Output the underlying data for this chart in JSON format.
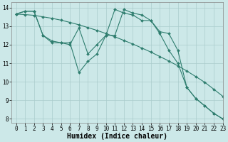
{
  "bg_color": "#cce8e8",
  "grid_color": "#aacccc",
  "line_color": "#2e7d6e",
  "xlabel": "Humidex (Indice chaleur)",
  "xlabel_fontsize": 7,
  "tick_fontsize": 5.5,
  "xlim": [
    -0.5,
    23
  ],
  "ylim": [
    7.8,
    14.3
  ],
  "yticks": [
    8,
    9,
    10,
    11,
    12,
    13,
    14
  ],
  "xticks": [
    0,
    1,
    2,
    3,
    4,
    5,
    6,
    7,
    8,
    9,
    10,
    11,
    12,
    13,
    14,
    15,
    16,
    17,
    18,
    19,
    20,
    21,
    22,
    23
  ],
  "line1_x": [
    0,
    1,
    2,
    3,
    4,
    5,
    6,
    7,
    8,
    9,
    10,
    11,
    12,
    13,
    14,
    15,
    16,
    17,
    18,
    19,
    20,
    21,
    22,
    23
  ],
  "line1_y": [
    13.65,
    13.62,
    13.58,
    13.5,
    13.42,
    13.32,
    13.2,
    13.07,
    12.92,
    12.77,
    12.6,
    12.42,
    12.23,
    12.03,
    11.82,
    11.6,
    11.36,
    11.12,
    10.86,
    10.58,
    10.28,
    9.97,
    9.6,
    9.22
  ],
  "line2_x": [
    0,
    1,
    2,
    3,
    4,
    5,
    6,
    7,
    8,
    9,
    10,
    11,
    12,
    13,
    14,
    15,
    16,
    17,
    18,
    19,
    20,
    21,
    22,
    23
  ],
  "line2_y": [
    13.65,
    13.8,
    13.8,
    12.5,
    12.1,
    12.1,
    12.1,
    10.5,
    11.1,
    11.5,
    12.5,
    13.9,
    13.7,
    13.6,
    13.3,
    13.3,
    12.6,
    11.7,
    11.0,
    9.7,
    9.1,
    8.7,
    8.3,
    8.0
  ],
  "line3_x": [
    0,
    1,
    2,
    3,
    4,
    5,
    6,
    7,
    8,
    9,
    10,
    11,
    12,
    13,
    14,
    15,
    16,
    17,
    18,
    19,
    20,
    21,
    22,
    23
  ],
  "line3_y": [
    13.65,
    13.8,
    13.8,
    12.5,
    12.2,
    12.1,
    12.0,
    12.9,
    11.5,
    12.0,
    12.5,
    12.5,
    13.9,
    13.7,
    13.6,
    13.3,
    12.7,
    12.6,
    11.7,
    9.7,
    9.1,
    8.7,
    8.3,
    8.0
  ]
}
